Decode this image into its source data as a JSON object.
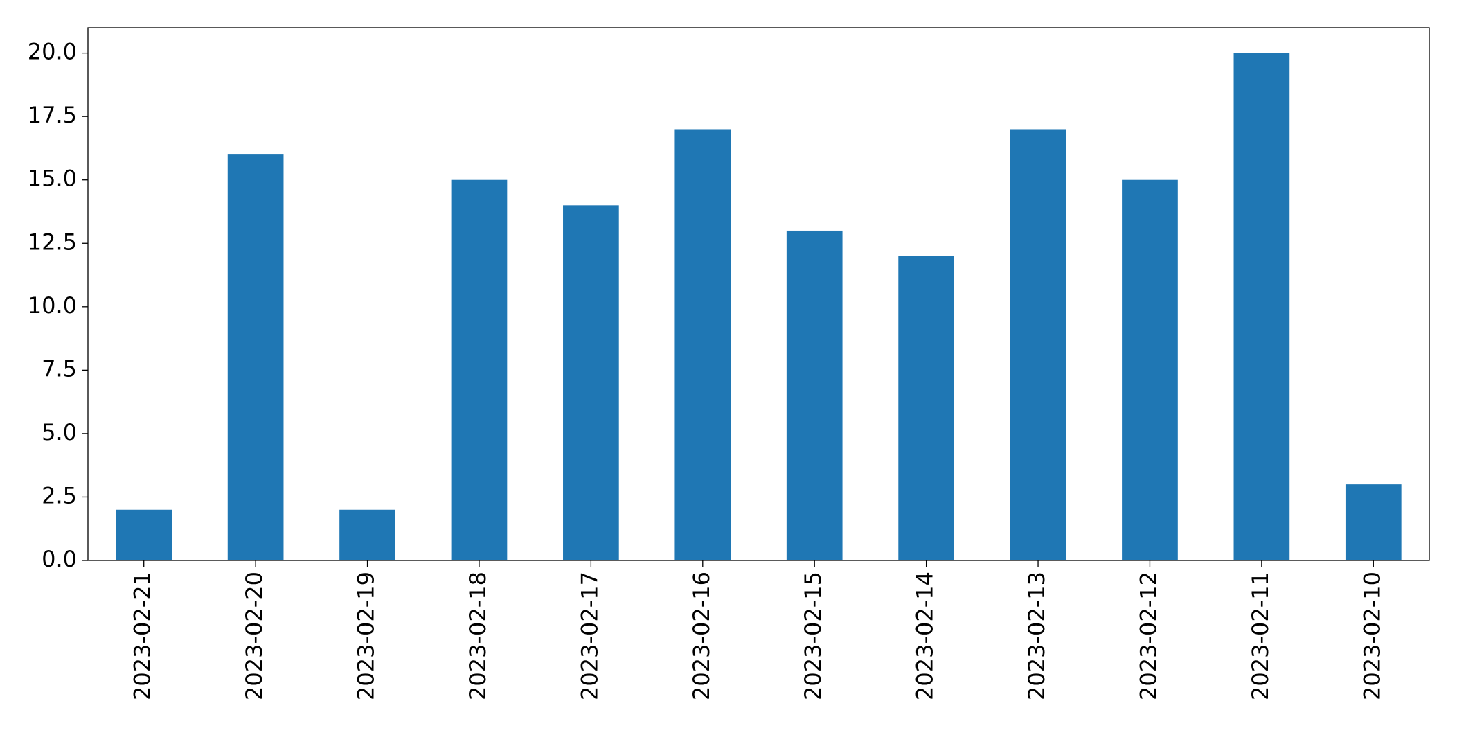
{
  "chart_data": {
    "type": "bar",
    "categories": [
      "2023-02-21",
      "2023-02-20",
      "2023-02-19",
      "2023-02-18",
      "2023-02-17",
      "2023-02-16",
      "2023-02-15",
      "2023-02-14",
      "2023-02-13",
      "2023-02-12",
      "2023-02-11",
      "2023-02-10"
    ],
    "values": [
      2,
      16,
      2,
      15,
      14,
      17,
      13,
      12,
      17,
      15,
      20,
      3
    ],
    "color": "#1f77b4",
    "ylim": [
      0,
      21
    ],
    "yticks": [
      {
        "value": 0,
        "label": "0.0"
      },
      2.5,
      {
        "value": 5,
        "label": "5.0"
      },
      7.5,
      {
        "value": 10,
        "label": "10.0"
      },
      12.5,
      {
        "value": 15,
        "label": "15.0"
      },
      17.5,
      {
        "value": 20,
        "label": "20.0"
      }
    ],
    "grid": false
  }
}
